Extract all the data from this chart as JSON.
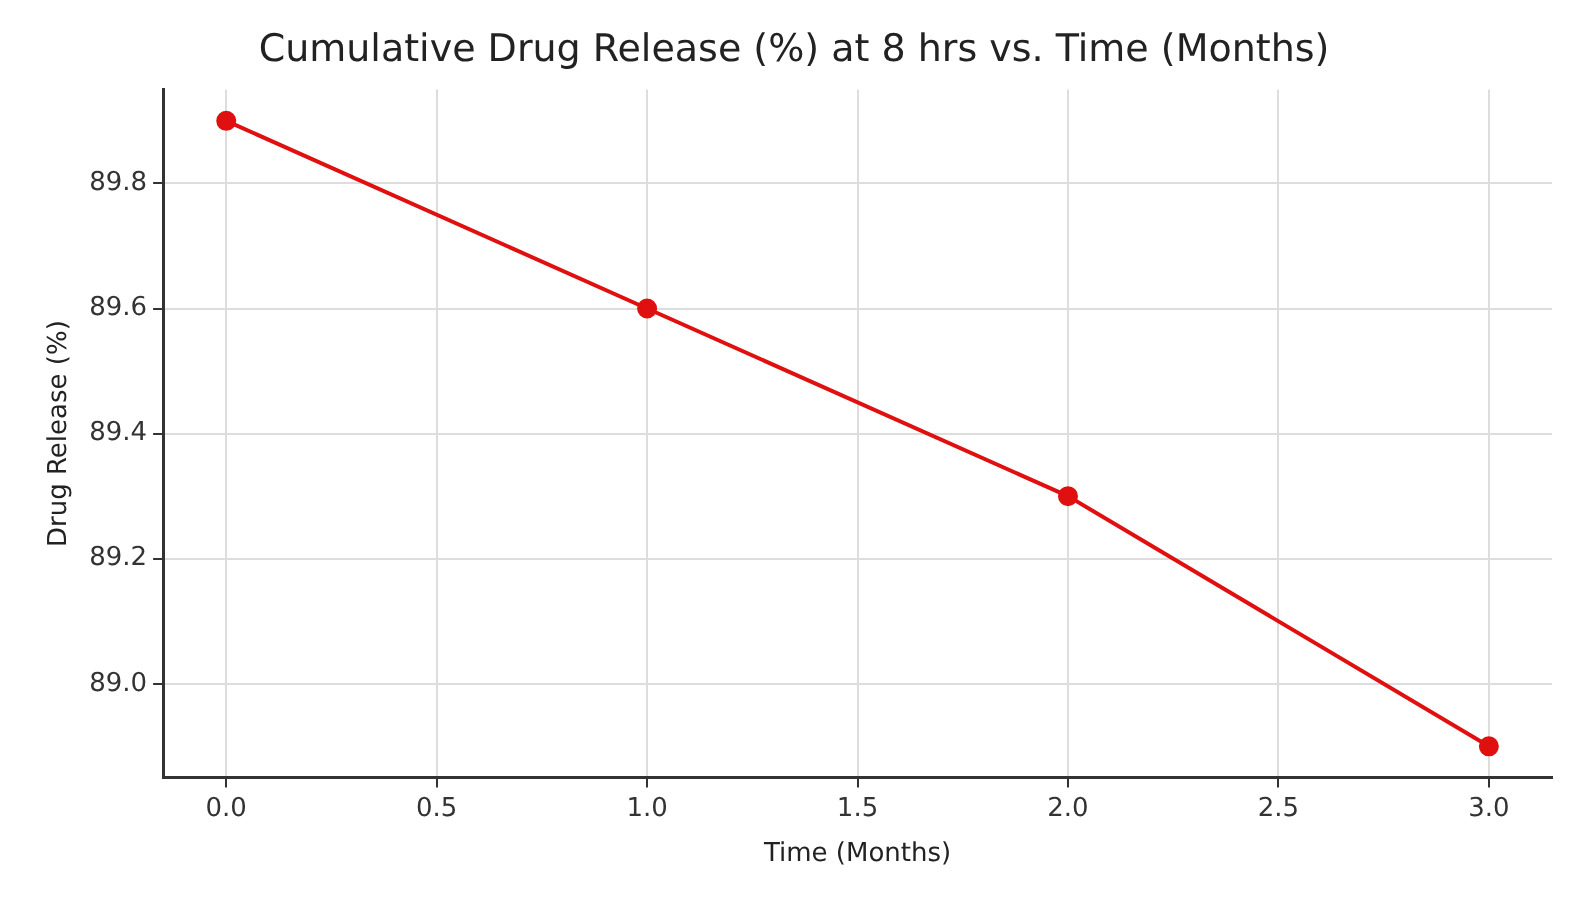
{
  "chart_data": {
    "type": "line",
    "title": "Cumulative Drug Release (%) at 8 hrs vs. Time (Months)",
    "xlabel": "Time (Months)",
    "ylabel": "Drug Release (%)",
    "x": [
      0,
      1,
      2,
      3
    ],
    "series": [
      {
        "color": "#e01010",
        "values": [
          89.9,
          89.6,
          89.3,
          88.9
        ]
      }
    ],
    "xlim": [
      -0.15,
      3.15
    ],
    "xticks": [
      {
        "value": 0,
        "label": "0.0"
      },
      0.5,
      {
        "value": 1,
        "label": "1.0"
      },
      1.5,
      {
        "value": 2,
        "label": "2.0"
      },
      2.5,
      {
        "value": 3,
        "label": "3.0"
      }
    ],
    "ylim": [
      88.85,
      89.95
    ],
    "yticks": [
      {
        "value": 89,
        "label": "89.0"
      },
      89.2,
      89.4,
      89.6,
      89.8
    ],
    "grid": true,
    "marker": "circle",
    "line_style": "solid"
  }
}
